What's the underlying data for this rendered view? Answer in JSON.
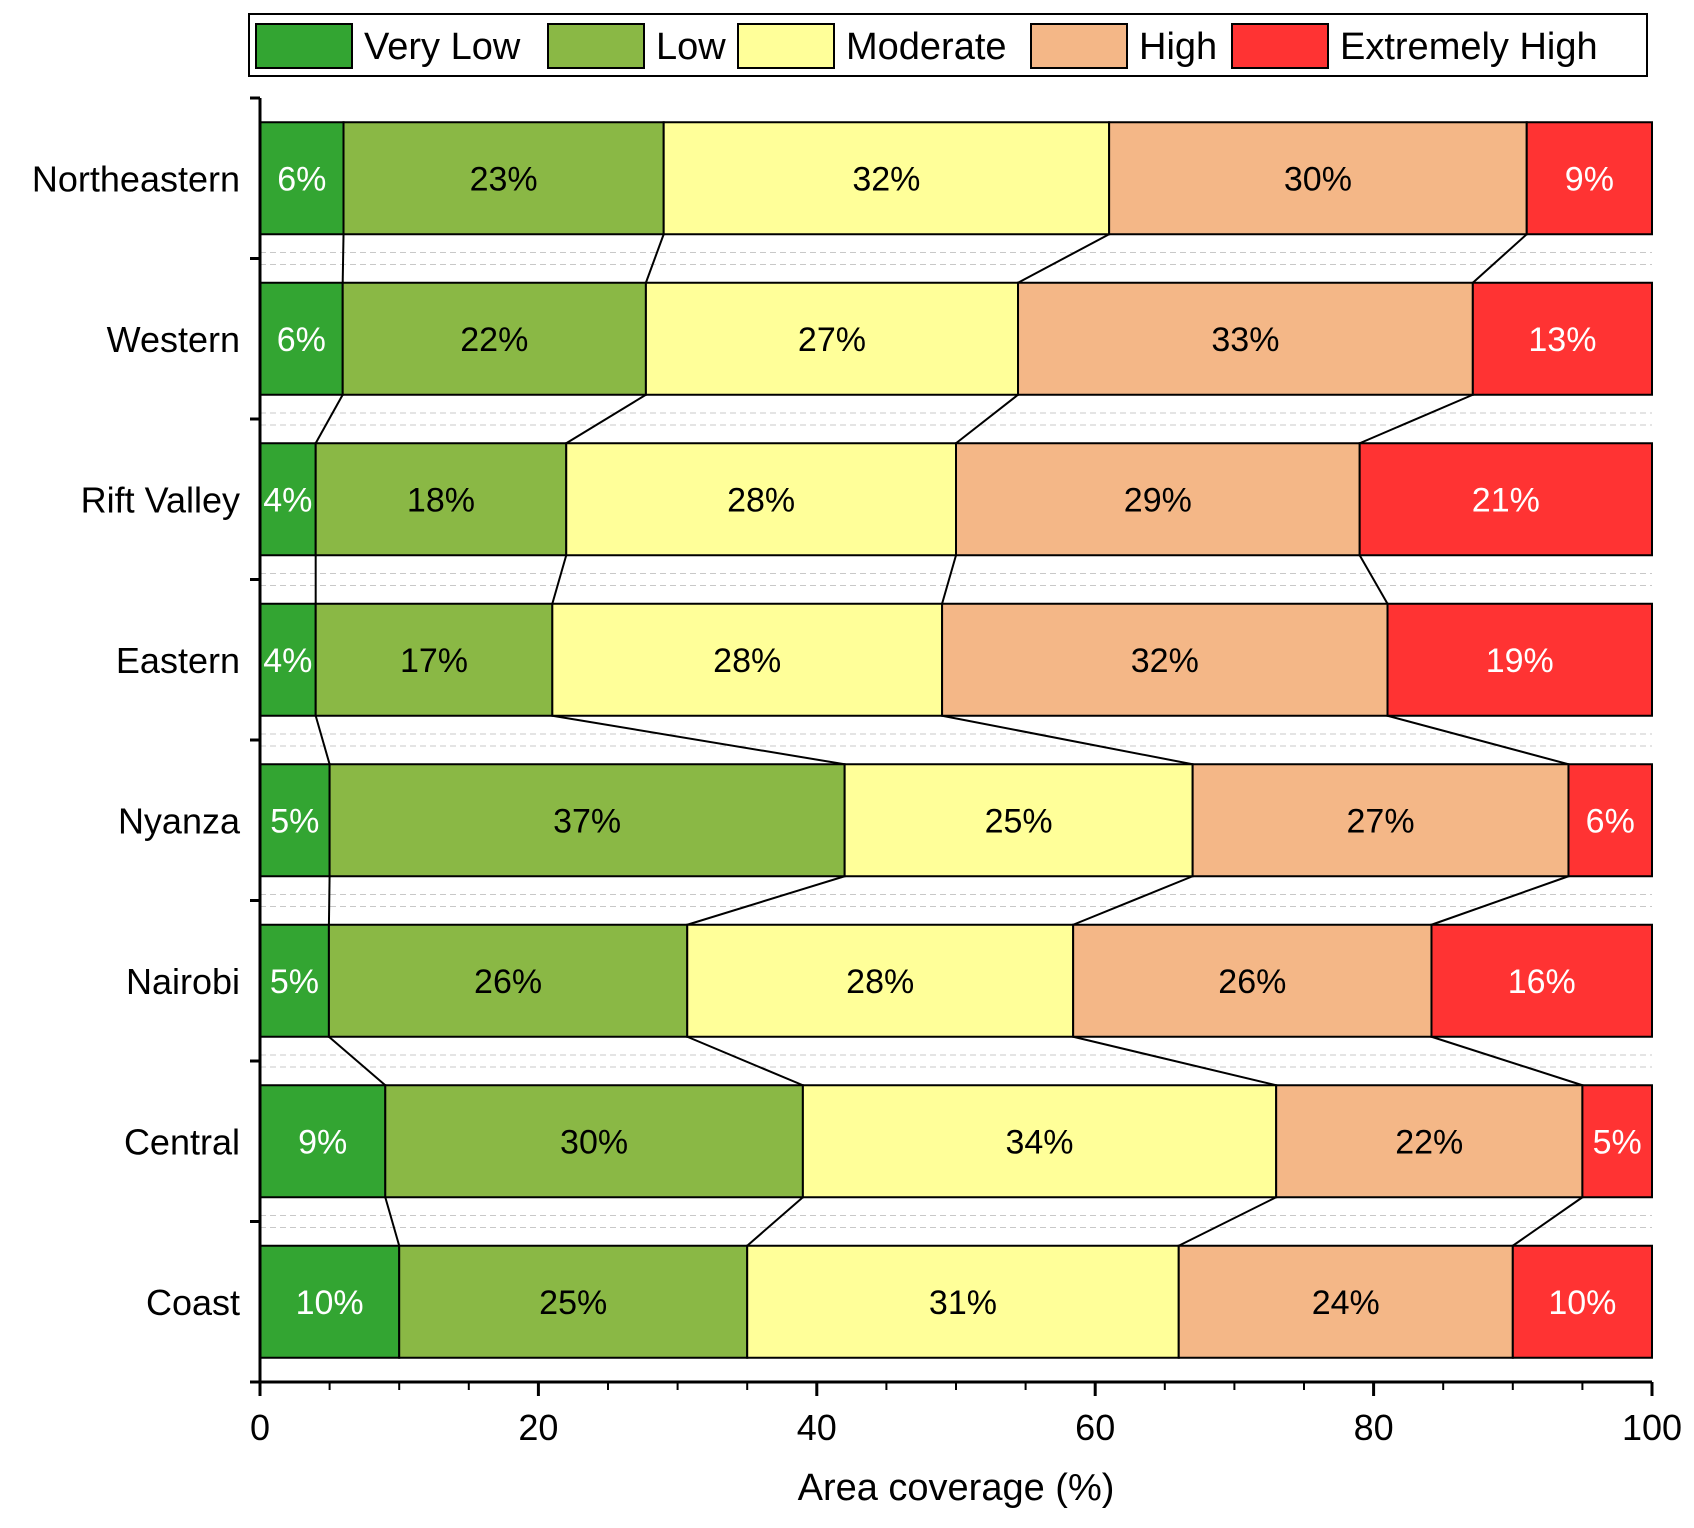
{
  "chart_data": {
    "type": "bar",
    "orientation": "horizontal",
    "stacked": true,
    "title": "",
    "xlabel": "Area coverage (%)",
    "ylabel": "",
    "xlim": [
      0,
      100
    ],
    "xticks": [
      0,
      20,
      40,
      60,
      80,
      100
    ],
    "categories": [
      "Northeastern",
      "Western",
      "Rift Valley",
      "Eastern",
      "Nyanza",
      "Nairobi",
      "Central",
      "Coast"
    ],
    "series": [
      {
        "name": "Very Low",
        "color": "#33a532",
        "label_color": "#ffffff",
        "values": [
          6,
          6,
          4,
          4,
          5,
          5,
          9,
          10
        ],
        "labels": [
          "6%",
          "6%",
          "4%",
          "4%",
          "5%",
          "5%",
          "9%",
          "10%"
        ]
      },
      {
        "name": "Low",
        "color": "#8ab845",
        "label_color": "#000000",
        "values": [
          23,
          22,
          18,
          17,
          37,
          26,
          30,
          25
        ],
        "labels": [
          "23%",
          "22%",
          "18%",
          "17%",
          "37%",
          "26%",
          "30%",
          "25%"
        ]
      },
      {
        "name": "Moderate",
        "color": "#ffff99",
        "label_color": "#000000",
        "values": [
          32,
          27,
          28,
          28,
          25,
          28,
          34,
          31
        ],
        "labels": [
          "32%",
          "27%",
          "28%",
          "28%",
          "25%",
          "28%",
          "34%",
          "31%"
        ]
      },
      {
        "name": "High",
        "color": "#f4b787",
        "label_color": "#000000",
        "values": [
          30,
          33,
          29,
          32,
          27,
          26,
          22,
          24
        ],
        "labels": [
          "30%",
          "33%",
          "29%",
          "32%",
          "27%",
          "26%",
          "22%",
          "24%"
        ]
      },
      {
        "name": "Extremely High",
        "color": "#ff3333",
        "label_color": "#ffffff",
        "values": [
          9,
          13,
          21,
          19,
          6,
          16,
          5,
          10
        ],
        "labels": [
          "9%",
          "13%",
          "21%",
          "19%",
          "6%",
          "16%",
          "5%",
          "10%"
        ]
      }
    ],
    "legend_position": "top",
    "grid": "horizontal-dashed",
    "connector_lines": true
  }
}
